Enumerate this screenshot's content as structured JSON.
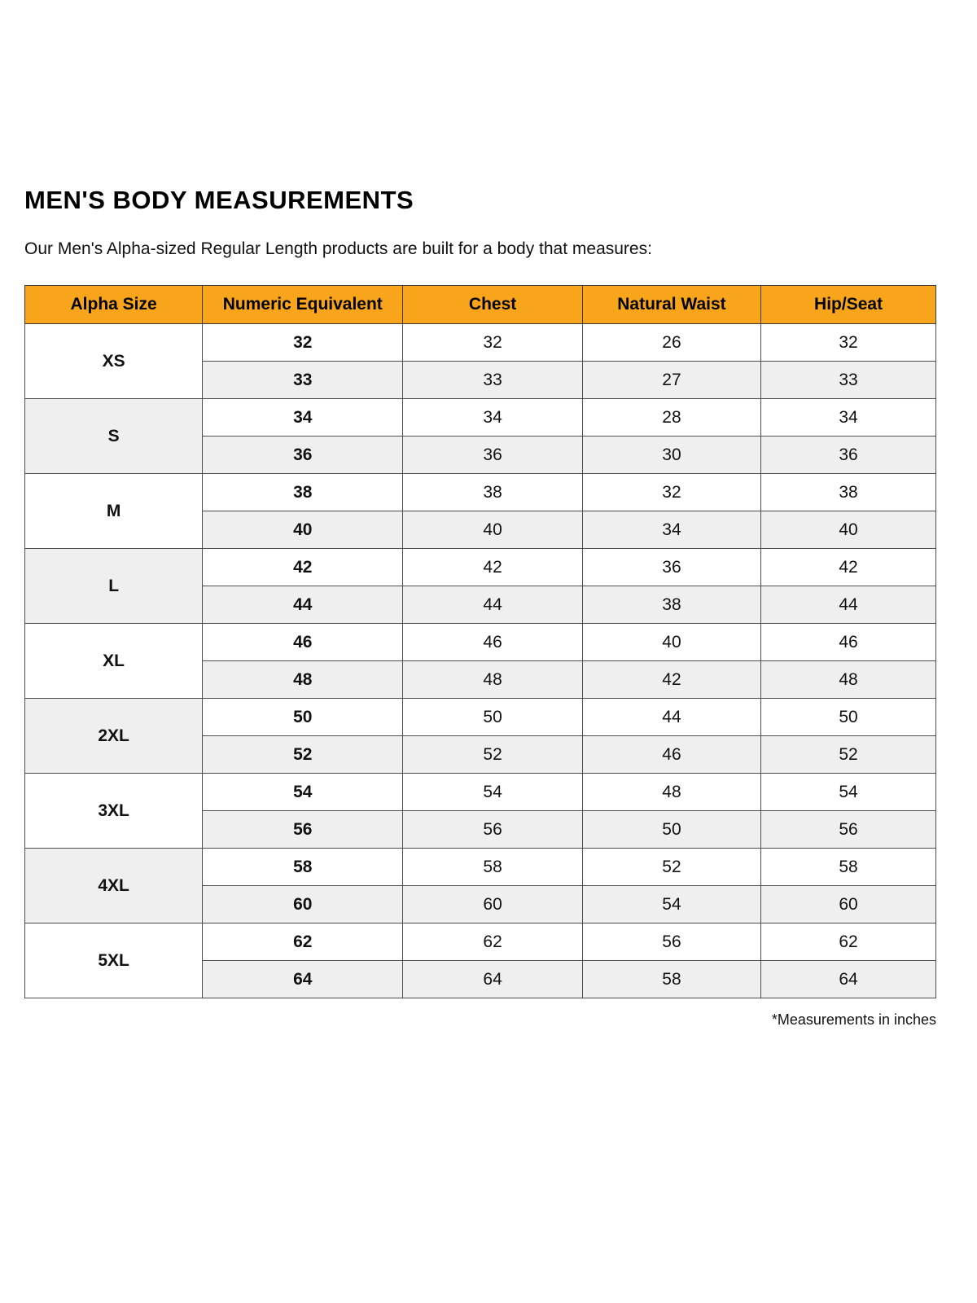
{
  "page": {
    "title": "MEN'S BODY MEASUREMENTS",
    "subtitle": "Our Men's Alpha-sized Regular Length products are built for a body that measures:",
    "footnote": "*Measurements in inches"
  },
  "table": {
    "headers": [
      "Alpha Size",
      "Numeric Equivalent",
      "Chest",
      "Natural Waist",
      "Hip/Seat"
    ],
    "colors": {
      "header_bg": "#F9A51B",
      "stripe_bg": "#EFEFEF",
      "border": "#4D4D4D"
    },
    "units_note": "inches",
    "groups": [
      {
        "alpha": "XS",
        "rows": [
          {
            "numeric": "32",
            "chest": "32",
            "waist": "26",
            "hip": "32"
          },
          {
            "numeric": "33",
            "chest": "33",
            "waist": "27",
            "hip": "33"
          }
        ]
      },
      {
        "alpha": "S",
        "rows": [
          {
            "numeric": "34",
            "chest": "34",
            "waist": "28",
            "hip": "34"
          },
          {
            "numeric": "36",
            "chest": "36",
            "waist": "30",
            "hip": "36"
          }
        ]
      },
      {
        "alpha": "M",
        "rows": [
          {
            "numeric": "38",
            "chest": "38",
            "waist": "32",
            "hip": "38"
          },
          {
            "numeric": "40",
            "chest": "40",
            "waist": "34",
            "hip": "40"
          }
        ]
      },
      {
        "alpha": "L",
        "rows": [
          {
            "numeric": "42",
            "chest": "42",
            "waist": "36",
            "hip": "42"
          },
          {
            "numeric": "44",
            "chest": "44",
            "waist": "38",
            "hip": "44"
          }
        ]
      },
      {
        "alpha": "XL",
        "rows": [
          {
            "numeric": "46",
            "chest": "46",
            "waist": "40",
            "hip": "46"
          },
          {
            "numeric": "48",
            "chest": "48",
            "waist": "42",
            "hip": "48"
          }
        ]
      },
      {
        "alpha": "2XL",
        "rows": [
          {
            "numeric": "50",
            "chest": "50",
            "waist": "44",
            "hip": "50"
          },
          {
            "numeric": "52",
            "chest": "52",
            "waist": "46",
            "hip": "52"
          }
        ]
      },
      {
        "alpha": "3XL",
        "rows": [
          {
            "numeric": "54",
            "chest": "54",
            "waist": "48",
            "hip": "54"
          },
          {
            "numeric": "56",
            "chest": "56",
            "waist": "50",
            "hip": "56"
          }
        ]
      },
      {
        "alpha": "4XL",
        "rows": [
          {
            "numeric": "58",
            "chest": "58",
            "waist": "52",
            "hip": "58"
          },
          {
            "numeric": "60",
            "chest": "60",
            "waist": "54",
            "hip": "60"
          }
        ]
      },
      {
        "alpha": "5XL",
        "rows": [
          {
            "numeric": "62",
            "chest": "62",
            "waist": "56",
            "hip": "62"
          },
          {
            "numeric": "64",
            "chest": "64",
            "waist": "58",
            "hip": "64"
          }
        ]
      }
    ]
  }
}
